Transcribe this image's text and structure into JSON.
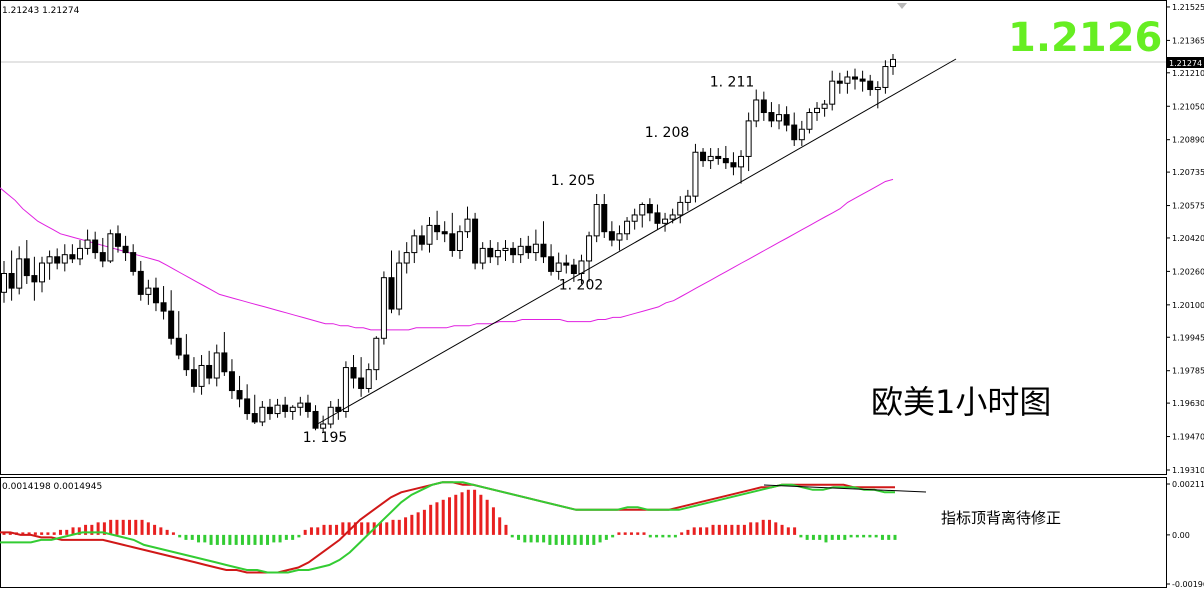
{
  "header": {
    "price_readout": "1.21243 1.21274",
    "macd_readout": "0.0014198 0.0014945",
    "big_price": "1.2126",
    "big_price_color": "#66ee22"
  },
  "labels": {
    "chart_title": "欧美1小时图",
    "macd_note": "指标顶背离待修正"
  },
  "colors": {
    "ma": "#e020e0",
    "trendline": "#000000",
    "macd_pos": "#e82020",
    "macd_neg": "#33cc33",
    "macd_main": "#33cc33",
    "macd_signal": "#d01818"
  },
  "chart_data": [
    {
      "type": "candlestick",
      "title": "",
      "ylim": [
        1.1931,
        1.2152
      ],
      "price_axis_ticks": [
        "1.21525",
        "1.21365",
        "1.21274",
        "1.21210",
        "1.21050",
        "1.20890",
        "1.20735",
        "1.20575",
        "1.20420",
        "1.20260",
        "1.20100",
        "1.19945",
        "1.19785",
        "1.19630",
        "1.19470",
        "1.19310"
      ],
      "last_price": 1.21274,
      "annotations": [
        {
          "text": "1. 195",
          "price": 1.1951
        },
        {
          "text": "1. 202",
          "price": 1.2024
        },
        {
          "text": "1. 205",
          "price": 1.2065
        },
        {
          "text": "1. 208",
          "price": 1.2088
        },
        {
          "text": "1. 211",
          "price": 1.2112
        }
      ],
      "candles": [
        [
          1.2016,
          1.2031,
          1.2011,
          1.2025
        ],
        [
          1.2025,
          1.2036,
          1.2012,
          1.2018
        ],
        [
          1.2018,
          1.2038,
          1.2015,
          1.2032
        ],
        [
          1.2032,
          1.2041,
          1.202,
          1.2024
        ],
        [
          1.2024,
          1.2033,
          1.2012,
          1.2021
        ],
        [
          1.2021,
          1.2033,
          1.2016,
          1.203
        ],
        [
          1.203,
          1.2036,
          1.2022,
          1.2033
        ],
        [
          1.2033,
          1.2037,
          1.2027,
          1.203
        ],
        [
          1.203,
          1.2039,
          1.2026,
          1.2034
        ],
        [
          1.2034,
          1.2039,
          1.203,
          1.2032
        ],
        [
          1.2032,
          1.2041,
          1.2029,
          1.2037
        ],
        [
          1.2037,
          1.2046,
          1.2034,
          1.2041
        ],
        [
          1.2041,
          1.2045,
          1.2032,
          1.2035
        ],
        [
          1.2035,
          1.2042,
          1.2028,
          1.2031
        ],
        [
          1.2031,
          1.2046,
          1.203,
          1.2044
        ],
        [
          1.2044,
          1.2048,
          1.2035,
          1.2038
        ],
        [
          1.2038,
          1.2043,
          1.2031,
          1.2035
        ],
        [
          1.2035,
          1.2039,
          1.2024,
          1.2026
        ],
        [
          1.2026,
          1.2031,
          1.2012,
          1.2015
        ],
        [
          1.2015,
          1.2022,
          1.201,
          1.2018
        ],
        [
          1.2018,
          1.2023,
          1.2007,
          1.2011
        ],
        [
          1.2011,
          1.2019,
          1.2003,
          1.2007
        ],
        [
          1.2007,
          1.2017,
          1.1991,
          1.1994
        ],
        [
          1.1994,
          1.2007,
          1.1984,
          1.1986
        ],
        [
          1.1986,
          1.1996,
          1.1976,
          1.1979
        ],
        [
          1.1979,
          1.1985,
          1.1968,
          1.1971
        ],
        [
          1.1971,
          1.1986,
          1.1967,
          1.1981
        ],
        [
          1.1981,
          1.1988,
          1.1972,
          1.1975
        ],
        [
          1.1975,
          1.1991,
          1.1971,
          1.1987
        ],
        [
          1.1987,
          1.1997,
          1.1976,
          1.1978
        ],
        [
          1.1978,
          1.1984,
          1.1965,
          1.1969
        ],
        [
          1.1969,
          1.1976,
          1.1961,
          1.1965
        ],
        [
          1.1965,
          1.1972,
          1.1955,
          1.1958
        ],
        [
          1.1958,
          1.1967,
          1.1953,
          1.1954
        ],
        [
          1.1954,
          1.1964,
          1.1952,
          1.1961
        ],
        [
          1.1961,
          1.1965,
          1.1955,
          1.1958
        ],
        [
          1.1958,
          1.1965,
          1.1956,
          1.1962
        ],
        [
          1.1962,
          1.1966,
          1.1956,
          1.1959
        ],
        [
          1.1959,
          1.1962,
          1.1955,
          1.1961
        ],
        [
          1.1961,
          1.1966,
          1.1957,
          1.1963
        ],
        [
          1.1963,
          1.1967,
          1.1956,
          1.1959
        ],
        [
          1.1959,
          1.1962,
          1.195,
          1.1951
        ],
        [
          1.1951,
          1.1957,
          1.1949,
          1.1953
        ],
        [
          1.1953,
          1.1964,
          1.1951,
          1.1961
        ],
        [
          1.1961,
          1.1965,
          1.1955,
          1.1959
        ],
        [
          1.1959,
          1.1983,
          1.1956,
          1.198
        ],
        [
          1.198,
          1.1986,
          1.197,
          1.1975
        ],
        [
          1.1975,
          1.1985,
          1.1966,
          1.197
        ],
        [
          1.197,
          1.1982,
          1.1968,
          1.1979
        ],
        [
          1.1979,
          1.1995,
          1.1974,
          1.1994
        ],
        [
          1.1994,
          1.2026,
          1.1991,
          1.2023
        ],
        [
          1.2023,
          1.2036,
          1.2006,
          1.2008
        ],
        [
          1.2008,
          1.2036,
          1.2005,
          1.203
        ],
        [
          1.203,
          1.204,
          1.2025,
          1.2035
        ],
        [
          1.2035,
          1.2046,
          1.203,
          1.2043
        ],
        [
          1.2043,
          1.2048,
          1.2036,
          1.2039
        ],
        [
          1.2039,
          1.2052,
          1.2035,
          1.2048
        ],
        [
          1.2048,
          1.2055,
          1.2041,
          1.2045
        ],
        [
          1.2045,
          1.205,
          1.204,
          1.2044
        ],
        [
          1.2044,
          1.2054,
          1.2033,
          1.2036
        ],
        [
          1.2036,
          1.2048,
          1.2032,
          1.2045
        ],
        [
          1.2045,
          1.2057,
          1.2042,
          1.2051
        ],
        [
          1.2051,
          1.2054,
          1.2027,
          1.203
        ],
        [
          1.203,
          1.204,
          1.2027,
          1.2037
        ],
        [
          1.2037,
          1.2041,
          1.203,
          1.2033
        ],
        [
          1.2033,
          1.204,
          1.2029,
          1.2036
        ],
        [
          1.2036,
          1.2041,
          1.2031,
          1.2037
        ],
        [
          1.2037,
          1.204,
          1.203,
          1.2034
        ],
        [
          1.2034,
          1.2042,
          1.203,
          1.2038
        ],
        [
          1.2038,
          1.2043,
          1.2032,
          1.2035
        ],
        [
          1.2035,
          1.2046,
          1.2031,
          1.2039
        ],
        [
          1.2039,
          1.205,
          1.203,
          1.2033
        ],
        [
          1.2033,
          1.2039,
          1.2024,
          1.2026
        ],
        [
          1.2026,
          1.2035,
          1.2022,
          1.203
        ],
        [
          1.203,
          1.2034,
          1.2025,
          1.2029
        ],
        [
          1.2029,
          1.2032,
          1.2021,
          1.2025
        ],
        [
          1.2025,
          1.2034,
          1.202,
          1.2031
        ],
        [
          1.2031,
          1.2045,
          1.2021,
          1.2043
        ],
        [
          1.2043,
          1.2063,
          1.204,
          1.2058
        ],
        [
          1.2058,
          1.2063,
          1.2042,
          1.2045
        ],
        [
          1.2045,
          1.205,
          1.2038,
          1.2041
        ],
        [
          1.2041,
          1.2048,
          1.2036,
          1.2044
        ],
        [
          1.2044,
          1.2052,
          1.2041,
          1.205
        ],
        [
          1.205,
          1.2056,
          1.2046,
          1.2053
        ],
        [
          1.2053,
          1.2059,
          1.2047,
          1.2058
        ],
        [
          1.2058,
          1.2061,
          1.205,
          1.2054
        ],
        [
          1.2054,
          1.2058,
          1.2046,
          1.2049
        ],
        [
          1.2049,
          1.2054,
          1.2045,
          1.2051
        ],
        [
          1.2051,
          1.2056,
          1.2049,
          1.2053
        ],
        [
          1.2053,
          1.2062,
          1.2049,
          1.2059
        ],
        [
          1.2059,
          1.2065,
          1.2055,
          1.2062
        ],
        [
          1.2062,
          1.2087,
          1.2059,
          1.2083
        ],
        [
          1.2083,
          1.2085,
          1.2076,
          1.2079
        ],
        [
          1.2079,
          1.2085,
          1.2075,
          1.2081
        ],
        [
          1.2081,
          1.2085,
          1.2077,
          1.208
        ],
        [
          1.208,
          1.2086,
          1.2075,
          1.2078
        ],
        [
          1.2078,
          1.2083,
          1.2072,
          1.2076
        ],
        [
          1.2076,
          1.2084,
          1.2068,
          1.2081
        ],
        [
          1.2081,
          1.2102,
          1.2074,
          1.2098
        ],
        [
          1.2098,
          1.2113,
          1.2095,
          1.2108
        ],
        [
          1.2108,
          1.2112,
          1.2098,
          1.2102
        ],
        [
          1.2102,
          1.2107,
          1.2095,
          1.2098
        ],
        [
          1.2098,
          1.2106,
          1.2094,
          1.2101
        ],
        [
          1.2101,
          1.2105,
          1.2093,
          1.2096
        ],
        [
          1.2096,
          1.2102,
          1.2086,
          1.2089
        ],
        [
          1.2089,
          1.2098,
          1.2086,
          1.2094
        ],
        [
          1.2094,
          1.2104,
          1.2092,
          1.2102
        ],
        [
          1.2102,
          1.2107,
          1.2098,
          1.2104
        ],
        [
          1.2104,
          1.2108,
          1.21,
          1.2106
        ],
        [
          1.2106,
          1.2122,
          1.2103,
          1.2117
        ],
        [
          1.2117,
          1.2121,
          1.2111,
          1.2116
        ],
        [
          1.2116,
          1.2122,
          1.2111,
          1.2119
        ],
        [
          1.2119,
          1.2123,
          1.2113,
          1.2118
        ],
        [
          1.2118,
          1.2122,
          1.2112,
          1.2117
        ],
        [
          1.2117,
          1.212,
          1.211,
          1.2113
        ],
        [
          1.2113,
          1.2117,
          1.2104,
          1.2114
        ],
        [
          1.2114,
          1.2127,
          1.2111,
          1.2124
        ],
        [
          1.2124,
          1.213,
          1.212,
          1.21274
        ]
      ],
      "ma_series": [
        1.2066,
        1.2063,
        1.206,
        1.2056,
        1.2053,
        1.205,
        1.2048,
        1.2046,
        1.2044,
        1.2043,
        1.2042,
        1.2041,
        1.204,
        1.2039,
        1.2038,
        1.2037,
        1.2036,
        1.2035,
        1.2034,
        1.2033,
        1.2032,
        1.2031,
        1.2029,
        1.2027,
        1.2025,
        1.2023,
        1.2021,
        1.2019,
        1.2017,
        1.2015,
        1.2014,
        1.2013,
        1.2012,
        1.2011,
        1.201,
        1.2009,
        1.2008,
        1.2007,
        1.2006,
        1.2005,
        1.2004,
        1.2003,
        1.2002,
        1.2001,
        1.2001,
        1.2,
        1.2,
        1.1999,
        1.1999,
        1.1998,
        1.1998,
        1.1998,
        1.1998,
        1.1998,
        1.1998,
        1.1999,
        1.1999,
        1.1999,
        1.1999,
        1.1999,
        1.2,
        1.2,
        1.2,
        1.2001,
        1.2001,
        1.2001,
        1.2002,
        1.2002,
        1.2002,
        1.2003,
        1.2003,
        1.2003,
        1.2003,
        1.2003,
        1.2003,
        1.2002,
        1.2002,
        1.2002,
        1.2002,
        1.2003,
        1.2003,
        1.2004,
        1.2004,
        1.2005,
        1.2006,
        1.2007,
        1.2008,
        1.2009,
        1.2011,
        1.2012,
        1.2014,
        1.2016,
        1.2018,
        1.202,
        1.2022,
        1.2024,
        1.2026,
        1.2028,
        1.203,
        1.2032,
        1.2034,
        1.2036,
        1.2038,
        1.204,
        1.2042,
        1.2044,
        1.2046,
        1.2048,
        1.205,
        1.2052,
        1.2054,
        1.2056,
        1.2059,
        1.2061,
        1.2063,
        1.2065,
        1.2067,
        1.2069,
        1.207
      ]
    },
    {
      "type": "macd",
      "title": "",
      "ylim": [
        -0.00196,
        0.00211
      ],
      "axis_ticks": [
        "0.00211",
        "0.00",
        "-0.00196"
      ],
      "histogram": [
        0.0001,
        0.0001,
        0.0001,
        0.0001,
        0.0001,
        0.0001,
        0.0001,
        0.0001,
        0.0001,
        0.0002,
        0.0002,
        0.0003,
        0.0003,
        0.0004,
        0.0004,
        0.0005,
        0.0005,
        0.0006,
        0.0006,
        0.0006,
        0.0006,
        0.0006,
        0.0006,
        0.0005,
        0.0004,
        0.0003,
        0.0002,
        0.0001,
        -0.0001,
        -0.0002,
        -0.0002,
        -0.0003,
        -0.0003,
        -0.0004,
        -0.0004,
        -0.0004,
        -0.0004,
        -0.0004,
        -0.0004,
        -0.0004,
        -0.0004,
        -0.0004,
        -0.0004,
        -0.0003,
        -0.0003,
        -0.0002,
        -0.0002,
        -0.0001,
        0.0002,
        0.0003,
        0.0003,
        0.0004,
        0.0004,
        0.0004,
        0.0005,
        0.0005,
        0.0005,
        0.0005,
        0.0005,
        0.0005,
        0.0005,
        0.0005,
        0.0006,
        0.0006,
        0.0007,
        0.0008,
        0.0009,
        0.001,
        0.0012,
        0.0013,
        0.0014,
        0.0015,
        0.0016,
        0.0017,
        0.0018,
        0.0018,
        0.0016,
        0.0014,
        0.0011,
        0.0007,
        0.0004,
        -0.0001,
        -0.0002,
        -0.0003,
        -0.0003,
        -0.0003,
        -0.0003,
        -0.0004,
        -0.0004,
        -0.0004,
        -0.0004,
        -0.0004,
        -0.0004,
        -0.0004,
        -0.0004,
        -0.0003,
        -0.0002,
        -0.0001,
        0.0001,
        0.0001,
        0.0001,
        0.0001,
        0.0001,
        -0.0001,
        -0.0001,
        -0.0001,
        -0.0001,
        -0.0001,
        0.0001,
        0.0002,
        0.0003,
        0.0003,
        0.0003,
        0.0004,
        0.0004,
        0.0004,
        0.0004,
        0.0004,
        0.0004,
        0.0005,
        0.0005,
        0.0006,
        0.0006,
        0.0005,
        0.0004,
        0.0003,
        0.0003,
        -0.0001,
        -0.0002,
        -0.0002,
        -0.0002,
        -0.0003,
        -0.0002,
        -0.0002,
        -0.0002,
        -0.0001,
        -0.0001,
        -0.0001,
        -0.0001,
        -0.0001,
        -0.0002,
        -0.0002,
        -0.0002
      ],
      "main_line": [
        -0.0003,
        -0.0003,
        -0.0003,
        -0.0003,
        -0.0002,
        -0.0002,
        -0.0001,
        0.0,
        0.0001,
        0.0001,
        0.0001,
        0.0,
        -0.0001,
        -0.0002,
        -0.0004,
        -0.0005,
        -0.0006,
        -0.0007,
        -0.0008,
        -0.0009,
        -0.001,
        -0.0011,
        -0.0012,
        -0.0013,
        -0.0014,
        -0.0014,
        -0.0015,
        -0.0015,
        -0.0015,
        -0.0014,
        -0.0014,
        -0.0013,
        -0.0012,
        -0.001,
        -0.0007,
        -0.0003,
        0.0001,
        0.0005,
        0.0009,
        0.0013,
        0.0016,
        0.0018,
        0.002,
        0.0021,
        0.0021,
        0.0021,
        0.002,
        0.0019,
        0.0018,
        0.0017,
        0.0016,
        0.0015,
        0.0014,
        0.0013,
        0.0012,
        0.0011,
        0.001,
        0.001,
        0.001,
        0.001,
        0.001,
        0.0011,
        0.0011,
        0.001,
        0.001,
        0.001,
        0.001,
        0.0011,
        0.0012,
        0.0013,
        0.0014,
        0.0015,
        0.0016,
        0.0017,
        0.0018,
        0.0019,
        0.002,
        0.002,
        0.0019,
        0.0018,
        0.0018,
        0.0019,
        0.0019,
        0.0019,
        0.0018,
        0.0018,
        0.0017,
        0.0017
      ],
      "signal_line": [
        0.0001,
        0.0001,
        0.0,
        0.0,
        -0.0001,
        -0.0001,
        -0.0002,
        -0.0002,
        -0.0002,
        -0.0002,
        -0.0002,
        -0.0003,
        -0.0004,
        -0.0005,
        -0.0006,
        -0.0007,
        -0.0008,
        -0.0009,
        -0.001,
        -0.0011,
        -0.0012,
        -0.0013,
        -0.0014,
        -0.0014,
        -0.0015,
        -0.0015,
        -0.0015,
        -0.0015,
        -0.0014,
        -0.0013,
        -0.0011,
        -0.0008,
        -0.0005,
        -0.0002,
        0.0002,
        0.0006,
        0.0009,
        0.0012,
        0.0015,
        0.0017,
        0.0018,
        0.0019,
        0.002,
        0.0021,
        0.0021,
        0.002,
        0.002,
        0.0019,
        0.0018,
        0.0017,
        0.0016,
        0.0015,
        0.0014,
        0.0013,
        0.0012,
        0.0011,
        0.001,
        0.001,
        0.001,
        0.001,
        0.001,
        0.001,
        0.001,
        0.001,
        0.001,
        0.001,
        0.0011,
        0.0012,
        0.0013,
        0.0014,
        0.0015,
        0.0016,
        0.0017,
        0.0018,
        0.0019,
        0.0019,
        0.002,
        0.002,
        0.002,
        0.002,
        0.002,
        0.002,
        0.002,
        0.0019,
        0.0019,
        0.0019,
        0.0019,
        0.0019
      ]
    }
  ]
}
